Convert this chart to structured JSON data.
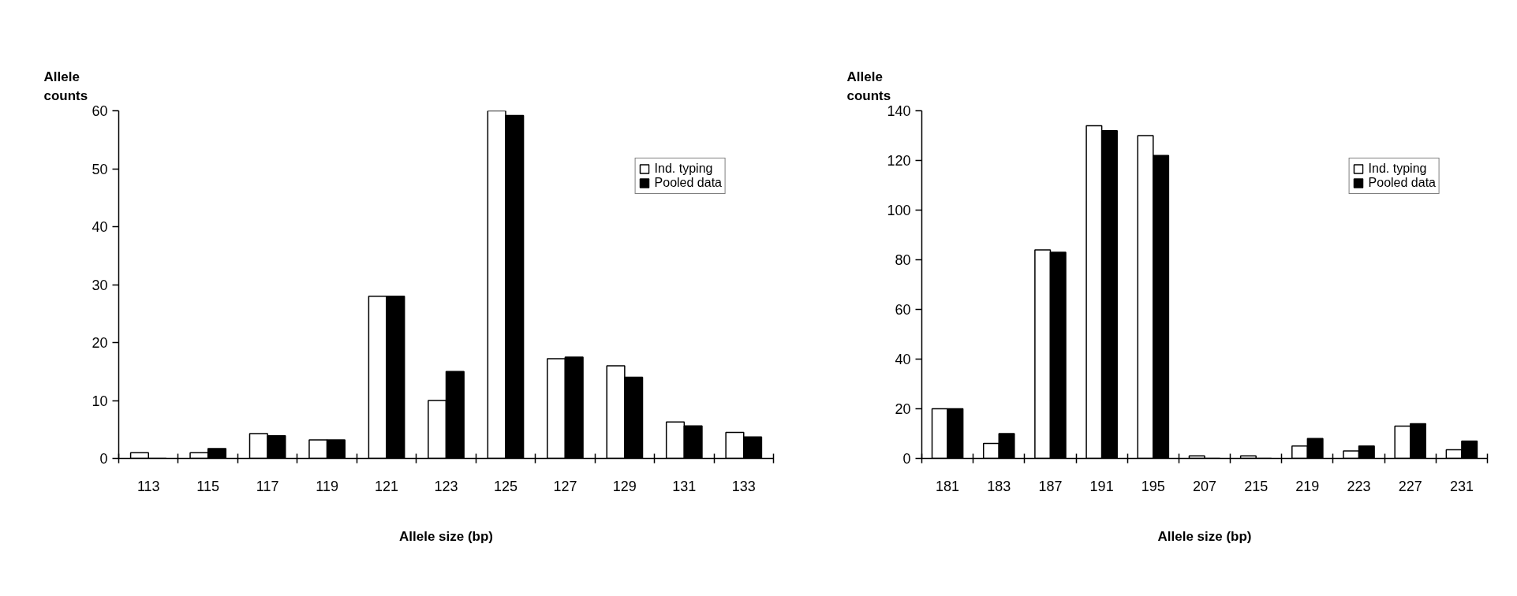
{
  "chart_data": [
    {
      "type": "bar",
      "ylabel": "Allele\ncounts",
      "xlabel": "Allele size (bp)",
      "categories": [
        "113",
        "115",
        "117",
        "119",
        "121",
        "123",
        "125",
        "127",
        "129",
        "131",
        "133"
      ],
      "series": [
        {
          "name": "Ind. typing",
          "color": "#ffffff",
          "values": [
            1,
            1,
            4.3,
            3.2,
            28,
            10,
            60,
            17.2,
            16,
            6.3,
            4.5
          ]
        },
        {
          "name": "Pooled data",
          "color": "#000000",
          "values": [
            0,
            1.7,
            3.9,
            3.2,
            28,
            15,
            59.2,
            17.5,
            14,
            5.6,
            3.7
          ]
        }
      ],
      "ylim": [
        0,
        60
      ],
      "yticks": [
        0,
        10,
        20,
        30,
        40,
        50,
        60
      ],
      "legend": "top right"
    },
    {
      "type": "bar",
      "ylabel": "Allele\ncounts",
      "xlabel": "Allele size (bp)",
      "categories": [
        "181",
        "183",
        "187",
        "191",
        "195",
        "207",
        "215",
        "219",
        "223",
        "227",
        "231"
      ],
      "series": [
        {
          "name": "Ind. typing",
          "color": "#ffffff",
          "values": [
            20,
            6,
            84,
            134,
            130,
            1,
            1,
            5,
            3,
            13,
            3.5
          ]
        },
        {
          "name": "Pooled data",
          "color": "#000000",
          "values": [
            20,
            10,
            83,
            132,
            122,
            0,
            0,
            8,
            5,
            14,
            7
          ]
        }
      ],
      "ylim": [
        0,
        140
      ],
      "yticks": [
        0,
        20,
        40,
        60,
        80,
        100,
        120,
        140
      ],
      "legend": "top right"
    }
  ]
}
